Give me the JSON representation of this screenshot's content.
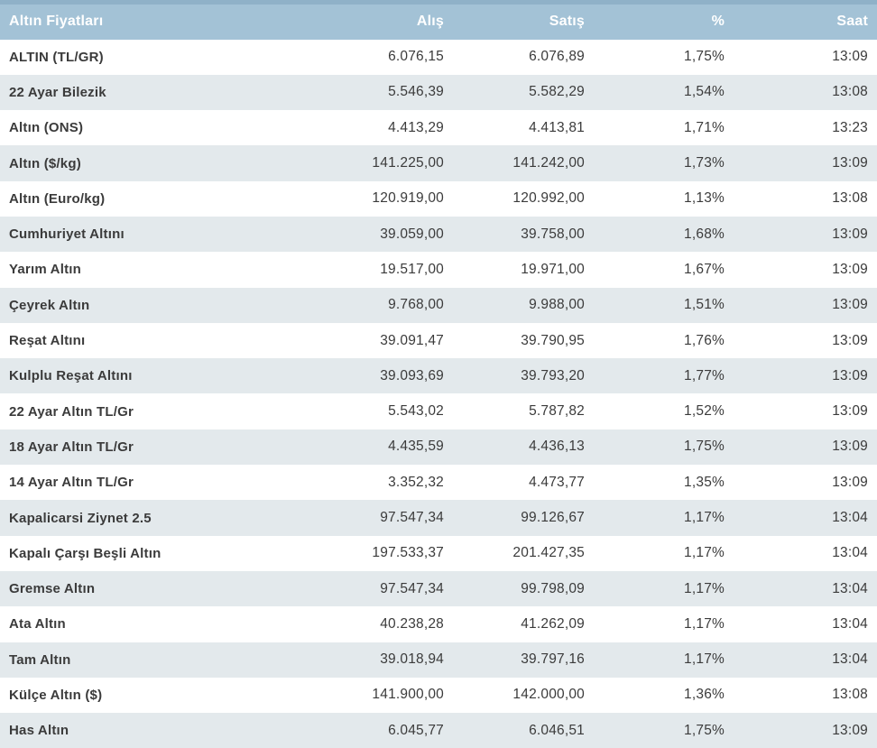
{
  "widget_title": "Altın Fiyatları",
  "colors": {
    "header_bg": "#a3c2d6",
    "header_top_edge": "#8fb1c8",
    "header_text": "#ffffff",
    "row_alt_bg": "#e3e9ec",
    "body_text": "#3b3b3b"
  },
  "table": {
    "headers": [
      "Altın Fiyatları",
      "Alış",
      "Satış",
      "%",
      "Saat"
    ],
    "rows": [
      {
        "name": "ALTIN (TL/GR)",
        "alis": "6.076,15",
        "satis": "6.076,89",
        "pct": "1,75%",
        "saat": "13:09"
      },
      {
        "name": "22 Ayar Bilezik",
        "alis": "5.546,39",
        "satis": "5.582,29",
        "pct": "1,54%",
        "saat": "13:08"
      },
      {
        "name": "Altın (ONS)",
        "alis": "4.413,29",
        "satis": "4.413,81",
        "pct": "1,71%",
        "saat": "13:23"
      },
      {
        "name": "Altın ($/kg)",
        "alis": "141.225,00",
        "satis": "141.242,00",
        "pct": "1,73%",
        "saat": "13:09"
      },
      {
        "name": "Altın (Euro/kg)",
        "alis": "120.919,00",
        "satis": "120.992,00",
        "pct": "1,13%",
        "saat": "13:08"
      },
      {
        "name": "Cumhuriyet Altını",
        "alis": "39.059,00",
        "satis": "39.758,00",
        "pct": "1,68%",
        "saat": "13:09"
      },
      {
        "name": "Yarım Altın",
        "alis": "19.517,00",
        "satis": "19.971,00",
        "pct": "1,67%",
        "saat": "13:09"
      },
      {
        "name": "Çeyrek Altın",
        "alis": "9.768,00",
        "satis": "9.988,00",
        "pct": "1,51%",
        "saat": "13:09"
      },
      {
        "name": "Reşat Altını",
        "alis": "39.091,47",
        "satis": "39.790,95",
        "pct": "1,76%",
        "saat": "13:09"
      },
      {
        "name": "Kulplu Reşat Altını",
        "alis": "39.093,69",
        "satis": "39.793,20",
        "pct": "1,77%",
        "saat": "13:09"
      },
      {
        "name": "22 Ayar Altın TL/Gr",
        "alis": "5.543,02",
        "satis": "5.787,82",
        "pct": "1,52%",
        "saat": "13:09"
      },
      {
        "name": "18 Ayar Altın TL/Gr",
        "alis": "4.435,59",
        "satis": "4.436,13",
        "pct": "1,75%",
        "saat": "13:09"
      },
      {
        "name": "14 Ayar Altın TL/Gr",
        "alis": "3.352,32",
        "satis": "4.473,77",
        "pct": "1,35%",
        "saat": "13:09"
      },
      {
        "name": "Kapalicarsi Ziynet 2.5",
        "alis": "97.547,34",
        "satis": "99.126,67",
        "pct": "1,17%",
        "saat": "13:04"
      },
      {
        "name": "Kapalı Çarşı Beşli Altın",
        "alis": "197.533,37",
        "satis": "201.427,35",
        "pct": "1,17%",
        "saat": "13:04"
      },
      {
        "name": "Gremse Altın",
        "alis": "97.547,34",
        "satis": "99.798,09",
        "pct": "1,17%",
        "saat": "13:04"
      },
      {
        "name": "Ata Altın",
        "alis": "40.238,28",
        "satis": "41.262,09",
        "pct": "1,17%",
        "saat": "13:04"
      },
      {
        "name": "Tam Altın",
        "alis": "39.018,94",
        "satis": "39.797,16",
        "pct": "1,17%",
        "saat": "13:04"
      },
      {
        "name": "Külçe Altın ($)",
        "alis": "141.900,00",
        "satis": "142.000,00",
        "pct": "1,36%",
        "saat": "13:08"
      },
      {
        "name": "Has Altın",
        "alis": "6.045,77",
        "satis": "6.046,51",
        "pct": "1,75%",
        "saat": "13:09"
      }
    ]
  }
}
